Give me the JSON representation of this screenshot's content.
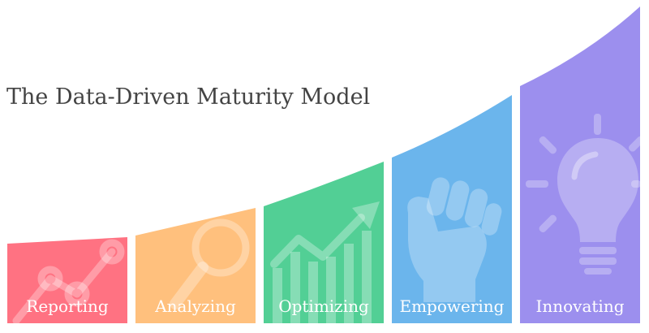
{
  "title": "The Data-Driven Maturity Model",
  "stages": [
    {
      "label": "Reporting",
      "icon": "line-chart-icon",
      "color": "#FF7282"
    },
    {
      "label": "Analyzing",
      "icon": "magnifier-icon",
      "color": "#FFC07D"
    },
    {
      "label": "Optimizing",
      "icon": "bar-chart-up-arrow-icon",
      "color": "#52CF95"
    },
    {
      "label": "Empowering",
      "icon": "raised-fist-icon",
      "color": "#6BB5EC"
    },
    {
      "label": "Innovating",
      "icon": "lightbulb-icon",
      "color": "#9C8FEE"
    }
  ]
}
